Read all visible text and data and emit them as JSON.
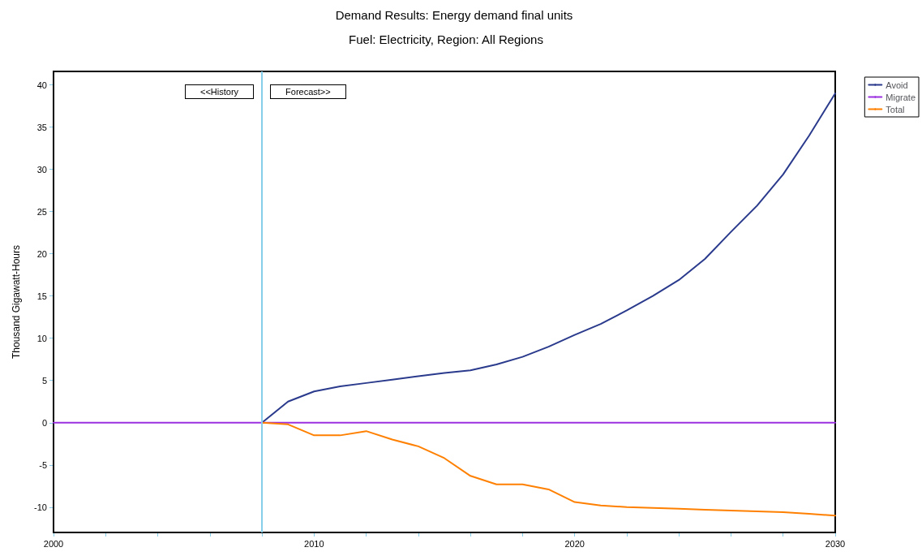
{
  "chart_data": {
    "type": "line",
    "title": "Demand Results: Energy demand final units",
    "subtitle": "Fuel: Electricity, Region: All Regions",
    "ylabel": "Thousand Gigawatt-Hours",
    "annotations": [
      "<<History",
      "Forecast>>"
    ],
    "x": [
      2008,
      2009,
      2010,
      2011,
      2012,
      2013,
      2014,
      2015,
      2016,
      2017,
      2018,
      2019,
      2020,
      2021,
      2022,
      2023,
      2024,
      2025,
      2026,
      2027,
      2028,
      2029,
      2030
    ],
    "series": [
      {
        "name": "Avoid",
        "color": "#2a3a8c",
        "values": [
          0,
          2.5,
          3.7,
          4.3,
          4.7,
          5.1,
          5.5,
          5.9,
          6.2,
          6.9,
          7.8,
          9.0,
          10.4,
          11.7,
          13.3,
          15.0,
          16.9,
          19.4,
          22.6,
          25.7,
          29.4,
          34.0,
          39.0
        ]
      },
      {
        "name": "Migrate",
        "color": "#9b30e0",
        "x": [
          2000,
          2030
        ],
        "values": [
          0,
          0
        ]
      },
      {
        "name": "Total",
        "color": "#ff8000",
        "values": [
          0,
          -0.2,
          -1.5,
          -1.5,
          -1.0,
          -2.0,
          -2.8,
          -4.2,
          -6.3,
          -7.3,
          -7.3,
          -7.9,
          -9.4,
          -9.8,
          -10.0,
          -10.1,
          -10.2,
          -10.3,
          -10.4,
          -10.5,
          -10.6,
          -10.8,
          -11.0
        ]
      }
    ],
    "xlim": [
      2000,
      2030
    ],
    "xticks": [
      2000,
      {
        "value": 2002,
        "label": null
      },
      {
        "value": 2004,
        "label": null
      },
      {
        "value": 2006,
        "label": null
      },
      {
        "value": 2008,
        "label": null
      },
      2010,
      {
        "value": 2012,
        "label": null
      },
      {
        "value": 2014,
        "label": null
      },
      {
        "value": 2016,
        "label": null
      },
      {
        "value": 2018,
        "label": null
      },
      2020,
      {
        "value": 2022,
        "label": null
      },
      {
        "value": 2024,
        "label": null
      },
      {
        "value": 2026,
        "label": null
      },
      {
        "value": 2028,
        "label": null
      },
      2030
    ],
    "ylim": [
      -13,
      41.6
    ],
    "yticks": [
      -10,
      -5,
      0,
      5,
      10,
      15,
      20,
      25,
      30,
      35,
      40
    ],
    "ref_lines": [
      {
        "axis": "x",
        "value": 2008,
        "color": "#87ceeb"
      }
    ],
    "grid": false,
    "legend": "top right",
    "marker": "none"
  }
}
